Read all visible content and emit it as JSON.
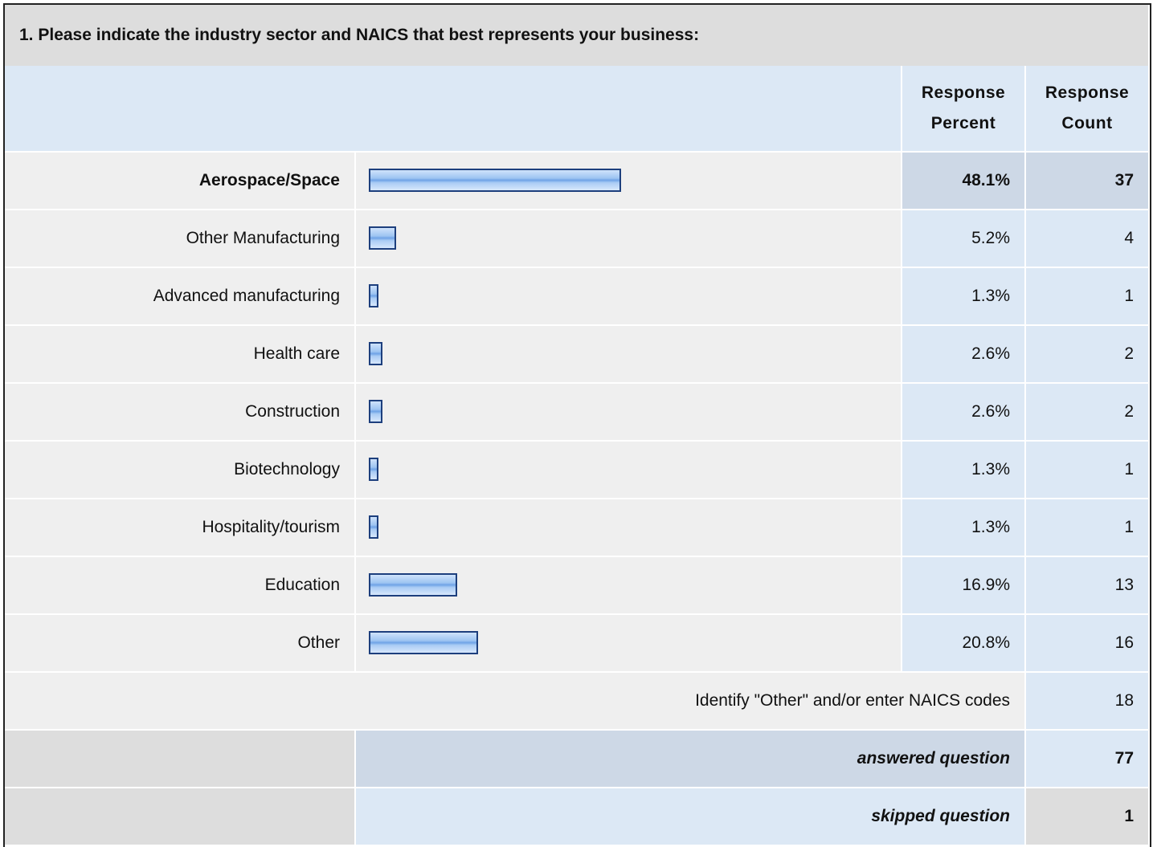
{
  "header": {
    "title": "1. Please indicate the industry sector and NAICS that best represents your business:"
  },
  "columns": [
    "Response Percent",
    "Response Count"
  ],
  "rows": [
    {
      "label": "Aerospace/Space",
      "percent": 48.1,
      "percent_label": "48.1%",
      "count": 37
    },
    {
      "label": "Other Manufacturing",
      "percent": 5.2,
      "percent_label": "5.2%",
      "count": 4
    },
    {
      "label": "Advanced manufacturing",
      "percent": 1.3,
      "percent_label": "1.3%",
      "count": 1
    },
    {
      "label": "Health care",
      "percent": 2.6,
      "percent_label": "2.6%",
      "count": 2
    },
    {
      "label": "Construction",
      "percent": 2.6,
      "percent_label": "2.6%",
      "count": 2
    },
    {
      "label": "Biotechnology",
      "percent": 1.3,
      "percent_label": "1.3%",
      "count": 1
    },
    {
      "label": "Hospitality/tourism",
      "percent": 1.3,
      "percent_label": "1.3%",
      "count": 1
    },
    {
      "label": "Education",
      "percent": 16.9,
      "percent_label": "16.9%",
      "count": 13
    },
    {
      "label": "Other",
      "percent": 20.8,
      "percent_label": "20.8%",
      "count": 16
    }
  ],
  "other_row": {
    "label": "Identify \"Other\" and/or enter NAICS codes",
    "count": 18
  },
  "answered": {
    "label": "answered question",
    "count": 77
  },
  "skipped": {
    "label": "skipped question",
    "count": 1
  }
}
